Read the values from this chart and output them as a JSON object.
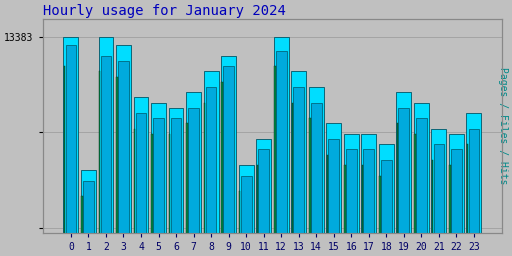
{
  "title": "Hourly usage for January 2024",
  "hours": [
    0,
    1,
    2,
    3,
    4,
    5,
    6,
    7,
    8,
    9,
    10,
    11,
    12,
    13,
    14,
    15,
    16,
    17,
    18,
    19,
    20,
    21,
    22,
    23
  ],
  "pages": [
    13383,
    12100,
    13383,
    13300,
    12800,
    12750,
    12700,
    12850,
    13050,
    13200,
    12150,
    12400,
    13383,
    13050,
    12900,
    12550,
    12450,
    12450,
    12350,
    12850,
    12750,
    12500,
    12450,
    12650
  ],
  "files": [
    13300,
    12000,
    13200,
    13150,
    12650,
    12600,
    12600,
    12700,
    12900,
    13100,
    12050,
    12300,
    13250,
    12900,
    12750,
    12400,
    12300,
    12300,
    12200,
    12700,
    12600,
    12350,
    12300,
    12500
  ],
  "hits": [
    13100,
    11850,
    13050,
    13000,
    12500,
    12450,
    12450,
    12550,
    12750,
    12950,
    11900,
    12150,
    13100,
    12750,
    12600,
    12250,
    12150,
    12150,
    12050,
    12550,
    12450,
    12200,
    12150,
    12350
  ],
  "bar_color_pages": "#00DDFF",
  "bar_color_files": "#00AADD",
  "bar_color_hits_strip": "#008844",
  "bar_edge_color": "#005566",
  "bg_color": "#C0C0C0",
  "plot_bg_color": "#C0C0C0",
  "title_color": "#0000BB",
  "ylabel_right": "Pages / Files / Hits",
  "ylabel_right_color": "#008888",
  "ytick_label": "13383",
  "ytick_value": 13383,
  "ylim_min": 11500,
  "ylim_max": 13550,
  "grid_lines": [
    13383,
    12466,
    11549
  ],
  "title_fontsize": 10,
  "tick_fontsize": 7,
  "ylabel_fontsize": 7
}
